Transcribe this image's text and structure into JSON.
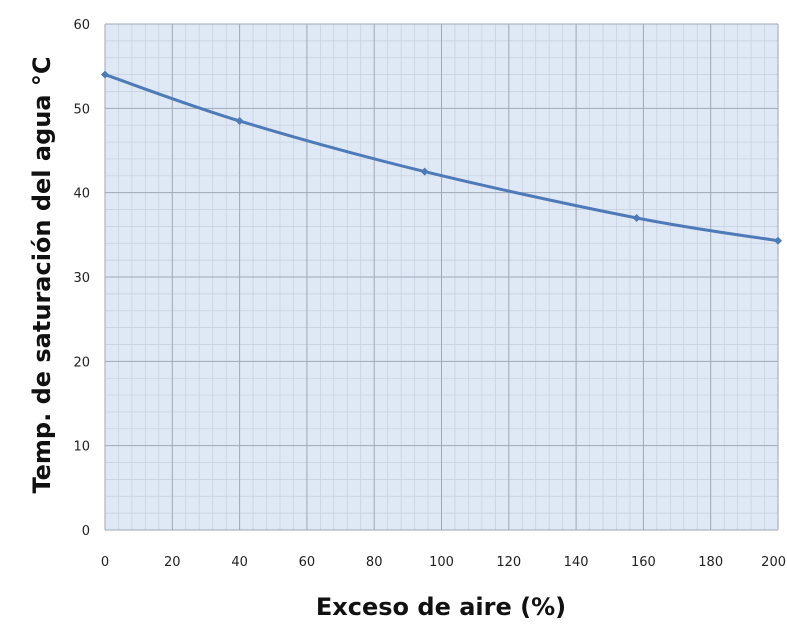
{
  "chart_data": {
    "type": "line",
    "xlabel": "Exceso de aire (%)",
    "ylabel": "Temp. de saturación del agua °C",
    "xlim": [
      0,
      200
    ],
    "ylim": [
      0,
      60
    ],
    "x_ticks": [
      "0",
      "20",
      "40",
      "60",
      "80",
      "100",
      "120",
      "140",
      "160",
      "180",
      "200"
    ],
    "y_ticks": [
      "0",
      "10",
      "20",
      "30",
      "40",
      "50",
      "60"
    ],
    "grid": true,
    "minor_grid": true,
    "legend": "none",
    "series": [
      {
        "color": "#4f7ab8",
        "x": [
          0,
          40,
          95,
          158,
          200
        ],
        "y": [
          54,
          48.5,
          42.5,
          37,
          34.3
        ]
      }
    ],
    "colors": {
      "plot_background": "#dfe8f5",
      "major_grid": "#9ea8b6",
      "minor_grid": "#c5cfdc"
    }
  }
}
